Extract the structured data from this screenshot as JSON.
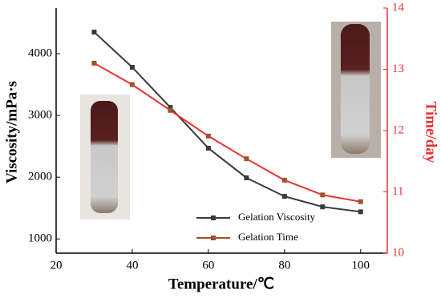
{
  "chart_data": {
    "type": "line",
    "x_label": "Temperature/℃",
    "y_label": "Viscosity/mPa·s",
    "y2_label": "Time/day",
    "x": [
      30,
      40,
      50,
      60,
      70,
      80,
      90,
      100
    ],
    "series": [
      {
        "name": "Gelation Viscosity",
        "color": "#3a3a3a",
        "values": [
          4350,
          3780,
          3130,
          2470,
          1990,
          1690,
          1520,
          1440
        ]
      },
      {
        "name": "Gelation Time",
        "color": "#e8312e",
        "marker_color": "#a0522d",
        "axis": "y2",
        "values": [
          13.1,
          12.75,
          12.33,
          11.91,
          11.54,
          11.19,
          10.95,
          10.84
        ]
      }
    ],
    "xlim": [
      20,
      107
    ],
    "xticks": [
      20,
      40,
      60,
      80,
      100
    ],
    "ylim": [
      770,
      4740
    ],
    "yticks": [
      1000,
      2000,
      3000,
      4000
    ],
    "y2lim": [
      10,
      14
    ],
    "y2ticks": [
      10,
      11,
      12,
      13,
      14
    ],
    "y2_color": "#e8312e",
    "legend": "lower center"
  }
}
